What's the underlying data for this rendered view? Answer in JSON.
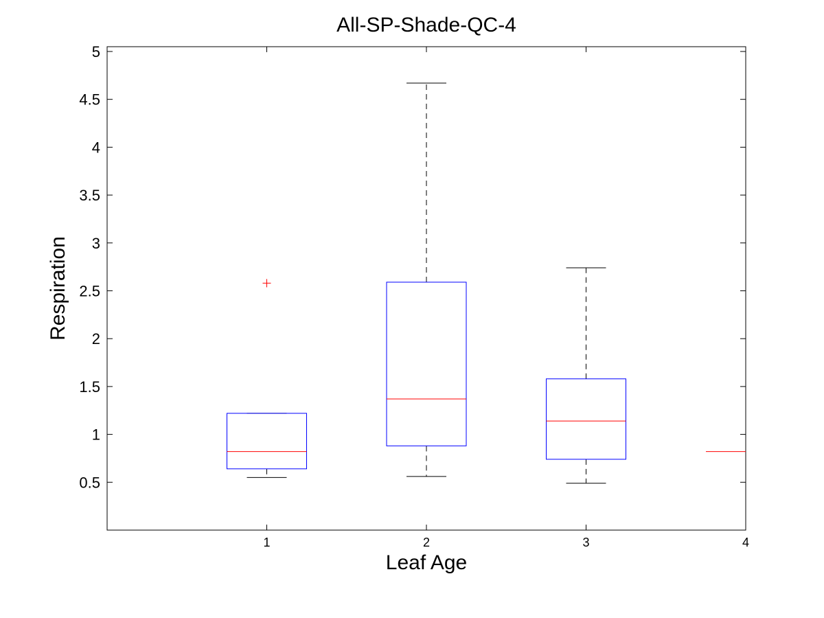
{
  "chart_data": {
    "type": "boxplot",
    "title": "All-SP-Shade-QC-4",
    "xlabel": "Leaf Age",
    "ylabel": "Respiration",
    "categories": [
      "1",
      "2",
      "3",
      "4"
    ],
    "ylim": [
      0,
      5.05
    ],
    "xlim": [
      0,
      4
    ],
    "yticks": [
      0.5,
      1,
      1.5,
      2,
      2.5,
      3,
      3.5,
      4,
      4.5,
      5
    ],
    "ytick_labels": [
      "0.5",
      "1",
      "1.5",
      "2",
      "2.5",
      "3",
      "3.5",
      "4",
      "4.5",
      "5"
    ],
    "grid": false,
    "legend": "none",
    "boxes": [
      {
        "category": "1",
        "whisker_low": 0.55,
        "q1": 0.64,
        "median": 0.82,
        "q3": 1.22,
        "whisker_high": 1.22,
        "outliers": [
          2.58
        ]
      },
      {
        "category": "2",
        "whisker_low": 0.56,
        "q1": 0.88,
        "median": 1.37,
        "q3": 2.59,
        "whisker_high": 4.67,
        "outliers": []
      },
      {
        "category": "3",
        "whisker_low": 0.49,
        "q1": 0.74,
        "median": 1.14,
        "q3": 1.58,
        "whisker_high": 2.74,
        "outliers": []
      },
      {
        "category": "4",
        "whisker_low": 0.82,
        "q1": 0.82,
        "median": 0.82,
        "q3": 0.82,
        "whisker_high": 0.82,
        "outliers": []
      }
    ],
    "colors": {
      "box": "#0000ff",
      "median": "#ff0000",
      "whisker": "#000000",
      "outlier": "#ff0000"
    }
  }
}
